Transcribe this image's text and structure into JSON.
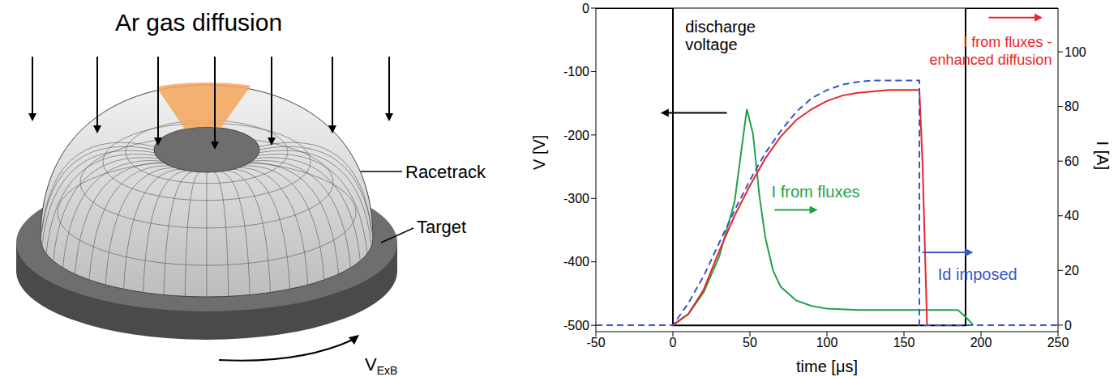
{
  "diagram": {
    "title": "Ar gas diffusion",
    "labels": [
      "Racetrack",
      "Target"
    ],
    "velocity": {
      "text": "V",
      "subscript": "ExB"
    }
  },
  "chart_data": {
    "type": "line",
    "xlabel": "time [μs]",
    "ylabel": "V [V]",
    "y2label": "I [A]",
    "xlim": [
      -50,
      250
    ],
    "xticks": [
      -50,
      0,
      50,
      100,
      150,
      200,
      250
    ],
    "ylim": [
      -510,
      0
    ],
    "yticks": [
      -500,
      -400,
      -300,
      -200,
      -100,
      0
    ],
    "y2lim": [
      -2.4,
      116
    ],
    "y2ticks": [
      0,
      20,
      40,
      60,
      80,
      100
    ],
    "series": [
      {
        "name": "discharge voltage",
        "color": "#000000",
        "line_style": "solid",
        "x": [
          -50,
          0,
          0,
          190,
          190,
          250
        ],
        "values": [
          0,
          0,
          -500,
          -500,
          0,
          0
        ]
      },
      {
        "name": "I from fluxes",
        "color": "#23a14a",
        "axis": "y2",
        "line_style": "solid",
        "x": [
          0,
          10,
          20,
          30,
          40,
          44,
          48,
          52,
          56,
          60,
          65,
          70,
          80,
          90,
          100,
          120,
          185,
          190,
          195
        ],
        "values": [
          0,
          4,
          12,
          25,
          45,
          62,
          79,
          70,
          48,
          32,
          20,
          14,
          9,
          7,
          6,
          5.5,
          5.5,
          3,
          0
        ]
      },
      {
        "name": "I from fluxes - enhanced diffusion",
        "color": "#e8262a",
        "axis": "y2",
        "line_style": "solid",
        "x": [
          0,
          10,
          20,
          30,
          40,
          50,
          60,
          70,
          80,
          90,
          100,
          110,
          120,
          140,
          160,
          162,
          165
        ],
        "values": [
          0,
          4,
          13,
          27,
          40,
          51,
          61,
          69,
          75,
          79,
          82,
          84,
          85,
          86,
          86,
          60,
          0
        ]
      },
      {
        "name": "Id imposed",
        "color": "#3a55c8",
        "axis": "y2",
        "line_style": "dashed",
        "x": [
          -50,
          0,
          10,
          20,
          30,
          40,
          50,
          60,
          70,
          80,
          90,
          100,
          110,
          120,
          130,
          160,
          160,
          250
        ],
        "values": [
          0,
          0,
          8,
          18,
          30,
          42,
          53,
          63,
          71,
          78,
          83,
          86,
          88,
          89,
          89.5,
          89.5,
          0,
          0
        ]
      }
    ]
  }
}
